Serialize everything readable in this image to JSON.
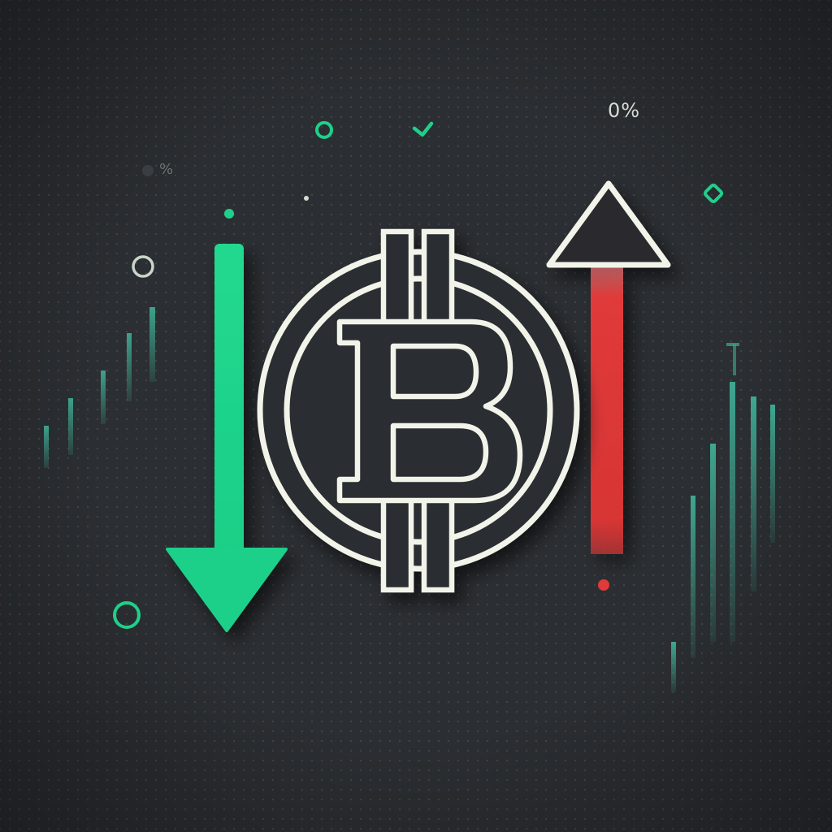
{
  "scene": {
    "description_kind": "bitcoin-volatility-illustration",
    "colors": {
      "background": "#2b2e32",
      "green": "#1fd08a",
      "red": "#e03a3a",
      "outline": "#f2f4ea",
      "dark": "#1c1e21",
      "teal_bar": "#3fae96"
    },
    "labels": {
      "percent_top_right": "0%",
      "percent_top_left": "%"
    },
    "icons": {
      "center": "bitcoin-icon",
      "left_arrow": "arrow-down-icon",
      "right_arrow": "arrow-up-icon"
    }
  }
}
